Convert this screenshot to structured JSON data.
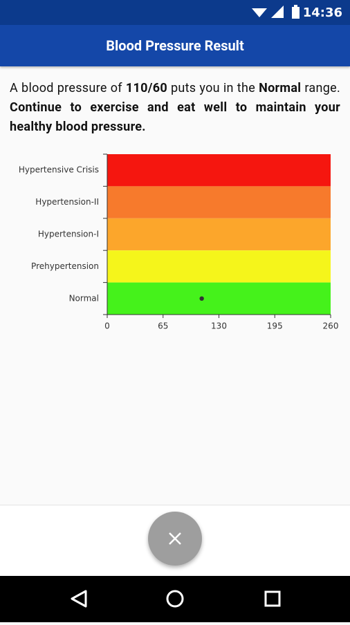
{
  "status_bar": {
    "time": "14:36"
  },
  "app_bar": {
    "title": "Blood Pressure Result"
  },
  "message": {
    "parts": [
      "A blood pressure of",
      "110/60",
      "puts you in the",
      "Normal",
      "range.",
      "Continue to exercise and eat well to maintain your healthy blood pressure."
    ]
  },
  "chart_data": {
    "type": "scatter",
    "categories": [
      "Hypertensive Crisis",
      "Hypertension-II",
      "Hypertension-I",
      "Prehypertension",
      "Normal"
    ],
    "band_colors": [
      "#f5160f",
      "#f77a2c",
      "#fca62b",
      "#f5f51b",
      "#45f21b"
    ],
    "x": [
      110
    ],
    "y": [
      "Normal"
    ],
    "color": "#333333",
    "xlim": [
      0,
      260
    ],
    "xticks": [
      0,
      65,
      130,
      195,
      260
    ]
  }
}
